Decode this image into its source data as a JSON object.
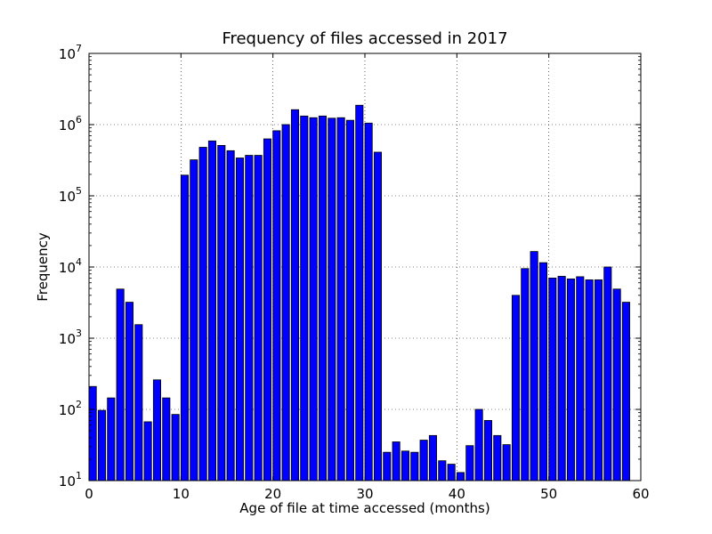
{
  "chart_data": {
    "type": "bar",
    "title": "Frequency of files accessed in 2017",
    "xlabel": "Age of file at time accessed (months)",
    "ylabel": "Frequency",
    "xlim": [
      0,
      60
    ],
    "ylim": [
      10,
      10000000
    ],
    "yscale": "log",
    "grid": true,
    "bar_color": "#0000ff",
    "x_ticks": [
      "0",
      "10",
      "20",
      "30",
      "40",
      "50",
      "60"
    ],
    "y_ticks": [
      {
        "base": "10",
        "exp": "1"
      },
      {
        "base": "10",
        "exp": "2"
      },
      {
        "base": "10",
        "exp": "3"
      },
      {
        "base": "10",
        "exp": "4"
      },
      {
        "base": "10",
        "exp": "5"
      },
      {
        "base": "10",
        "exp": "6"
      },
      {
        "base": "10",
        "exp": "7"
      }
    ],
    "x": [
      0,
      1,
      2,
      3,
      4,
      5,
      6,
      7,
      8,
      9,
      10,
      11,
      12,
      13,
      14,
      15,
      16,
      17,
      18,
      19,
      20,
      21,
      22,
      23,
      24,
      25,
      26,
      27,
      28,
      29,
      30,
      31,
      32,
      33,
      34,
      35,
      36,
      37,
      38,
      39,
      40,
      41,
      42,
      43,
      44,
      45,
      46,
      47,
      48,
      49,
      50,
      51,
      52,
      53,
      54,
      55,
      56,
      57,
      58
    ],
    "values": [
      210,
      97,
      145,
      4900,
      3200,
      1550,
      67,
      260,
      145,
      85,
      195000,
      320000,
      480000,
      590000,
      510000,
      430000,
      340000,
      370000,
      370000,
      630000,
      820000,
      1000000,
      1620000,
      1320000,
      1250000,
      1320000,
      1230000,
      1250000,
      1150000,
      1870000,
      1050000,
      410000,
      25,
      35,
      26,
      25,
      37,
      43,
      19,
      17,
      13,
      31,
      100,
      70,
      43,
      32,
      4000,
      9500,
      16500,
      11500,
      7000,
      7400,
      6800,
      7300,
      6600,
      6600,
      10000,
      4900,
      3200
    ]
  }
}
